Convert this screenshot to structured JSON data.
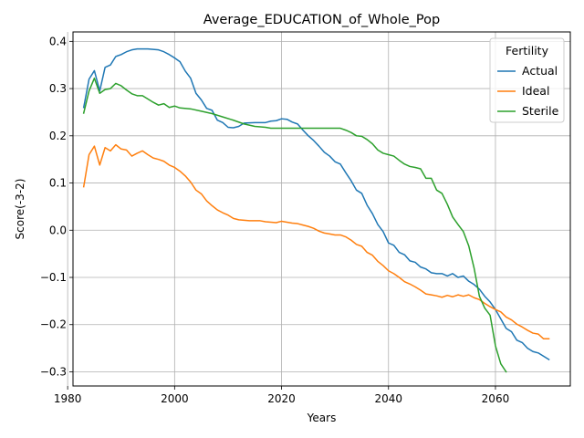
{
  "chart_data": {
    "type": "line",
    "title": "Average_EDUCATION_of_Whole_Pop",
    "xlabel": "Years",
    "ylabel": "Score(-3-2)",
    "xlim": [
      1981,
      2074
    ],
    "ylim": [
      -0.33,
      0.42
    ],
    "xticks": [
      1980,
      2000,
      2020,
      2040,
      2060
    ],
    "yticks": [
      -0.3,
      -0.2,
      -0.1,
      0.0,
      0.1,
      0.2,
      0.3,
      0.4
    ],
    "xtick_labels": [
      "1980",
      "2000",
      "2020",
      "2040",
      "2060"
    ],
    "ytick_labels": [
      "−0.3",
      "−0.2",
      "−0.1",
      "0.0",
      "0.1",
      "0.2",
      "0.3",
      "0.4"
    ],
    "grid": true,
    "legend": {
      "title": "Fertility",
      "placement": "top-right"
    },
    "series": [
      {
        "name": "Actual",
        "color": "#1f77b4",
        "points": [
          [
            1983,
            0.26
          ],
          [
            1984,
            0.32
          ],
          [
            1985,
            0.338
          ],
          [
            1986,
            0.295
          ],
          [
            1987,
            0.345
          ],
          [
            1988,
            0.35
          ],
          [
            1989,
            0.368
          ],
          [
            1990,
            0.372
          ],
          [
            1991,
            0.378
          ],
          [
            1992,
            0.382
          ],
          [
            1993,
            0.384
          ],
          [
            1995,
            0.384
          ],
          [
            1997,
            0.382
          ],
          [
            1998,
            0.378
          ],
          [
            1999,
            0.372
          ],
          [
            2000,
            0.365
          ],
          [
            2001,
            0.357
          ],
          [
            2002,
            0.337
          ],
          [
            2003,
            0.322
          ],
          [
            2004,
            0.29
          ],
          [
            2005,
            0.276
          ],
          [
            2006,
            0.258
          ],
          [
            2007,
            0.254
          ],
          [
            2008,
            0.233
          ],
          [
            2009,
            0.228
          ],
          [
            2010,
            0.218
          ],
          [
            2011,
            0.217
          ],
          [
            2012,
            0.22
          ],
          [
            2013,
            0.227
          ],
          [
            2015,
            0.228
          ],
          [
            2017,
            0.228
          ],
          [
            2018,
            0.231
          ],
          [
            2019,
            0.232
          ],
          [
            2020,
            0.236
          ],
          [
            2021,
            0.235
          ],
          [
            2022,
            0.229
          ],
          [
            2023,
            0.225
          ],
          [
            2024,
            0.212
          ],
          [
            2025,
            0.2
          ],
          [
            2026,
            0.19
          ],
          [
            2027,
            0.178
          ],
          [
            2028,
            0.165
          ],
          [
            2029,
            0.157
          ],
          [
            2030,
            0.145
          ],
          [
            2031,
            0.14
          ],
          [
            2032,
            0.122
          ],
          [
            2033,
            0.105
          ],
          [
            2034,
            0.085
          ],
          [
            2035,
            0.078
          ],
          [
            2036,
            0.053
          ],
          [
            2037,
            0.035
          ],
          [
            2038,
            0.012
          ],
          [
            2039,
            -0.003
          ],
          [
            2040,
            -0.027
          ],
          [
            2041,
            -0.032
          ],
          [
            2042,
            -0.047
          ],
          [
            2043,
            -0.052
          ],
          [
            2044,
            -0.065
          ],
          [
            2045,
            -0.068
          ],
          [
            2046,
            -0.078
          ],
          [
            2047,
            -0.082
          ],
          [
            2048,
            -0.09
          ],
          [
            2049,
            -0.092
          ],
          [
            2050,
            -0.092
          ],
          [
            2051,
            -0.097
          ],
          [
            2052,
            -0.092
          ],
          [
            2053,
            -0.1
          ],
          [
            2054,
            -0.097
          ],
          [
            2055,
            -0.108
          ],
          [
            2056,
            -0.115
          ],
          [
            2057,
            -0.125
          ],
          [
            2058,
            -0.14
          ],
          [
            2059,
            -0.152
          ],
          [
            2060,
            -0.168
          ],
          [
            2061,
            -0.188
          ],
          [
            2062,
            -0.208
          ],
          [
            2063,
            -0.215
          ],
          [
            2064,
            -0.233
          ],
          [
            2065,
            -0.238
          ],
          [
            2066,
            -0.25
          ],
          [
            2067,
            -0.257
          ],
          [
            2068,
            -0.26
          ],
          [
            2069,
            -0.267
          ],
          [
            2070,
            -0.274
          ]
        ]
      },
      {
        "name": "Ideal",
        "color": "#ff7f0e",
        "points": [
          [
            1983,
            0.092
          ],
          [
            1984,
            0.16
          ],
          [
            1985,
            0.178
          ],
          [
            1986,
            0.138
          ],
          [
            1987,
            0.175
          ],
          [
            1988,
            0.168
          ],
          [
            1989,
            0.181
          ],
          [
            1990,
            0.172
          ],
          [
            1991,
            0.17
          ],
          [
            1992,
            0.157
          ],
          [
            1993,
            0.163
          ],
          [
            1994,
            0.168
          ],
          [
            1995,
            0.16
          ],
          [
            1996,
            0.153
          ],
          [
            1997,
            0.15
          ],
          [
            1998,
            0.146
          ],
          [
            1999,
            0.138
          ],
          [
            2000,
            0.133
          ],
          [
            2001,
            0.125
          ],
          [
            2002,
            0.115
          ],
          [
            2003,
            0.102
          ],
          [
            2004,
            0.085
          ],
          [
            2005,
            0.077
          ],
          [
            2006,
            0.062
          ],
          [
            2007,
            0.052
          ],
          [
            2008,
            0.043
          ],
          [
            2009,
            0.037
          ],
          [
            2010,
            0.032
          ],
          [
            2011,
            0.025
          ],
          [
            2012,
            0.022
          ],
          [
            2014,
            0.02
          ],
          [
            2016,
            0.02
          ],
          [
            2017,
            0.018
          ],
          [
            2019,
            0.016
          ],
          [
            2020,
            0.019
          ],
          [
            2021,
            0.017
          ],
          [
            2022,
            0.015
          ],
          [
            2023,
            0.014
          ],
          [
            2024,
            0.011
          ],
          [
            2025,
            0.008
          ],
          [
            2026,
            0.004
          ],
          [
            2027,
            -0.002
          ],
          [
            2028,
            -0.006
          ],
          [
            2029,
            -0.008
          ],
          [
            2030,
            -0.01
          ],
          [
            2031,
            -0.01
          ],
          [
            2032,
            -0.014
          ],
          [
            2033,
            -0.021
          ],
          [
            2034,
            -0.03
          ],
          [
            2035,
            -0.034
          ],
          [
            2036,
            -0.047
          ],
          [
            2037,
            -0.053
          ],
          [
            2038,
            -0.066
          ],
          [
            2039,
            -0.075
          ],
          [
            2040,
            -0.086
          ],
          [
            2041,
            -0.092
          ],
          [
            2042,
            -0.1
          ],
          [
            2043,
            -0.109
          ],
          [
            2044,
            -0.114
          ],
          [
            2045,
            -0.12
          ],
          [
            2046,
            -0.127
          ],
          [
            2047,
            -0.135
          ],
          [
            2048,
            -0.137
          ],
          [
            2049,
            -0.139
          ],
          [
            2050,
            -0.142
          ],
          [
            2051,
            -0.138
          ],
          [
            2052,
            -0.141
          ],
          [
            2053,
            -0.137
          ],
          [
            2054,
            -0.14
          ],
          [
            2055,
            -0.137
          ],
          [
            2056,
            -0.143
          ],
          [
            2057,
            -0.147
          ],
          [
            2058,
            -0.155
          ],
          [
            2059,
            -0.162
          ],
          [
            2060,
            -0.168
          ],
          [
            2061,
            -0.173
          ],
          [
            2062,
            -0.184
          ],
          [
            2063,
            -0.19
          ],
          [
            2064,
            -0.199
          ],
          [
            2065,
            -0.205
          ],
          [
            2066,
            -0.212
          ],
          [
            2067,
            -0.218
          ],
          [
            2068,
            -0.22
          ],
          [
            2069,
            -0.23
          ],
          [
            2070,
            -0.23
          ]
        ]
      },
      {
        "name": "Sterile",
        "color": "#2ca02c",
        "points": [
          [
            1983,
            0.248
          ],
          [
            1984,
            0.295
          ],
          [
            1985,
            0.322
          ],
          [
            1986,
            0.29
          ],
          [
            1987,
            0.298
          ],
          [
            1988,
            0.3
          ],
          [
            1989,
            0.311
          ],
          [
            1990,
            0.306
          ],
          [
            1991,
            0.297
          ],
          [
            1992,
            0.289
          ],
          [
            1993,
            0.285
          ],
          [
            1994,
            0.285
          ],
          [
            1995,
            0.278
          ],
          [
            1996,
            0.271
          ],
          [
            1997,
            0.265
          ],
          [
            1998,
            0.268
          ],
          [
            1999,
            0.26
          ],
          [
            2000,
            0.263
          ],
          [
            2001,
            0.259
          ],
          [
            2003,
            0.257
          ],
          [
            2005,
            0.252
          ],
          [
            2007,
            0.247
          ],
          [
            2009,
            0.24
          ],
          [
            2011,
            0.233
          ],
          [
            2013,
            0.225
          ],
          [
            2015,
            0.22
          ],
          [
            2017,
            0.218
          ],
          [
            2018,
            0.216
          ],
          [
            2020,
            0.216
          ],
          [
            2025,
            0.216
          ],
          [
            2030,
            0.216
          ],
          [
            2031,
            0.216
          ],
          [
            2032,
            0.212
          ],
          [
            2033,
            0.207
          ],
          [
            2034,
            0.2
          ],
          [
            2035,
            0.199
          ],
          [
            2036,
            0.192
          ],
          [
            2037,
            0.183
          ],
          [
            2038,
            0.17
          ],
          [
            2039,
            0.163
          ],
          [
            2040,
            0.16
          ],
          [
            2041,
            0.157
          ],
          [
            2042,
            0.148
          ],
          [
            2043,
            0.14
          ],
          [
            2044,
            0.135
          ],
          [
            2045,
            0.133
          ],
          [
            2046,
            0.13
          ],
          [
            2047,
            0.11
          ],
          [
            2048,
            0.11
          ],
          [
            2049,
            0.085
          ],
          [
            2050,
            0.078
          ],
          [
            2051,
            0.055
          ],
          [
            2052,
            0.028
          ],
          [
            2053,
            0.012
          ],
          [
            2054,
            -0.003
          ],
          [
            2055,
            -0.033
          ],
          [
            2056,
            -0.08
          ],
          [
            2057,
            -0.14
          ],
          [
            2058,
            -0.165
          ],
          [
            2059,
            -0.18
          ],
          [
            2060,
            -0.245
          ],
          [
            2061,
            -0.283
          ],
          [
            2062,
            -0.3
          ]
        ]
      }
    ]
  }
}
